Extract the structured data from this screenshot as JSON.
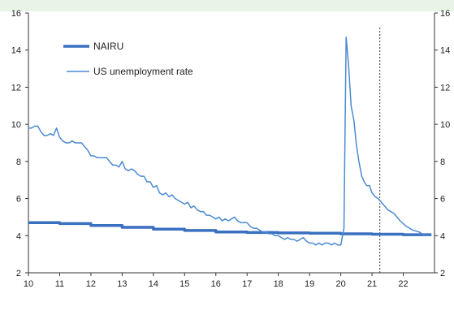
{
  "chart_data": {
    "type": "line",
    "xlim": [
      10,
      23
    ],
    "ylim": [
      2,
      16
    ],
    "x_ticks": [
      "10",
      "11",
      "12",
      "13",
      "14",
      "15",
      "16",
      "17",
      "18",
      "19",
      "20",
      "21",
      "22"
    ],
    "y_ticks_left": [
      "2",
      "4",
      "6",
      "8",
      "10",
      "12",
      "14",
      "16"
    ],
    "y_ticks_right": [
      "2",
      "4",
      "6",
      "8",
      "10",
      "12",
      "14",
      "16"
    ],
    "legend_position": "top-left",
    "grid": false,
    "vline_x": 21.25,
    "series": [
      {
        "name": "NAIRU",
        "color": "#3a70c0",
        "style": "thick",
        "x": [
          10,
          11,
          11.0,
          12,
          12.0,
          13,
          13.0,
          14,
          14.0,
          15,
          15.0,
          16,
          16.0,
          17,
          17.0,
          18,
          18.0,
          19,
          19.0,
          20,
          20.0,
          21,
          21.0,
          22,
          22.0,
          22.9
        ],
        "y": [
          4.7,
          4.7,
          4.65,
          4.65,
          4.55,
          4.55,
          4.45,
          4.45,
          4.35,
          4.35,
          4.28,
          4.28,
          4.2,
          4.2,
          4.17,
          4.17,
          4.15,
          4.15,
          4.13,
          4.13,
          4.1,
          4.1,
          4.08,
          4.08,
          4.05,
          4.05
        ]
      },
      {
        "name": "US unemployment rate",
        "color": "#4a8ad0",
        "style": "thin",
        "x": [
          10.0,
          10.1,
          10.2,
          10.3,
          10.4,
          10.5,
          10.6,
          10.7,
          10.8,
          10.9,
          11.0,
          11.1,
          11.2,
          11.3,
          11.4,
          11.5,
          11.6,
          11.7,
          11.8,
          11.9,
          12.0,
          12.1,
          12.2,
          12.3,
          12.4,
          12.5,
          12.6,
          12.7,
          12.8,
          12.9,
          13.0,
          13.1,
          13.2,
          13.3,
          13.4,
          13.5,
          13.6,
          13.7,
          13.8,
          13.9,
          14.0,
          14.1,
          14.2,
          14.3,
          14.4,
          14.5,
          14.6,
          14.7,
          14.8,
          14.9,
          15.0,
          15.1,
          15.2,
          15.3,
          15.4,
          15.5,
          15.6,
          15.7,
          15.8,
          15.9,
          16.0,
          16.1,
          16.2,
          16.3,
          16.4,
          16.5,
          16.6,
          16.7,
          16.8,
          16.9,
          17.0,
          17.1,
          17.2,
          17.3,
          17.4,
          17.5,
          17.6,
          17.7,
          17.8,
          17.9,
          18.0,
          18.1,
          18.2,
          18.3,
          18.4,
          18.5,
          18.6,
          18.7,
          18.8,
          18.9,
          19.0,
          19.1,
          19.2,
          19.3,
          19.4,
          19.5,
          19.6,
          19.7,
          19.8,
          19.9,
          20.0,
          20.1,
          20.17,
          20.25,
          20.33,
          20.42,
          20.5,
          20.58,
          20.67,
          20.75,
          20.83,
          20.92,
          21.0,
          21.1,
          21.2,
          21.3,
          21.5,
          21.7,
          21.9,
          22.1,
          22.3,
          22.5,
          22.7,
          22.9
        ],
        "y": [
          9.8,
          9.8,
          9.9,
          9.9,
          9.6,
          9.4,
          9.4,
          9.5,
          9.4,
          9.8,
          9.3,
          9.1,
          9.0,
          9.0,
          9.1,
          9.0,
          9.0,
          9.0,
          8.8,
          8.6,
          8.3,
          8.3,
          8.2,
          8.2,
          8.2,
          8.2,
          8.0,
          7.8,
          7.8,
          7.7,
          8.0,
          7.6,
          7.5,
          7.6,
          7.5,
          7.3,
          7.2,
          7.2,
          6.9,
          6.9,
          6.6,
          6.7,
          6.3,
          6.2,
          6.3,
          6.1,
          6.2,
          6.0,
          5.9,
          5.8,
          5.7,
          5.8,
          5.5,
          5.6,
          5.4,
          5.3,
          5.3,
          5.1,
          5.1,
          5.0,
          4.9,
          5.0,
          4.8,
          4.9,
          4.8,
          4.9,
          5.0,
          4.8,
          4.7,
          4.7,
          4.7,
          4.5,
          4.4,
          4.4,
          4.3,
          4.2,
          4.2,
          4.1,
          4.1,
          4.0,
          4.0,
          3.9,
          3.8,
          3.9,
          3.8,
          3.8,
          3.7,
          3.8,
          3.9,
          3.7,
          3.6,
          3.6,
          3.5,
          3.6,
          3.5,
          3.6,
          3.6,
          3.5,
          3.6,
          3.5,
          3.5,
          4.4,
          14.7,
          13.2,
          11.0,
          10.2,
          8.9,
          8.0,
          7.2,
          6.9,
          6.7,
          6.7,
          6.3,
          6.1,
          6.0,
          5.8,
          5.4,
          5.2,
          4.8,
          4.5,
          4.3,
          4.2,
          4.0,
          4.0
        ]
      }
    ]
  }
}
